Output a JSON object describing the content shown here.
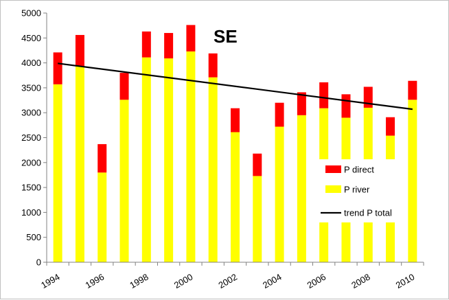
{
  "chart_data": {
    "type": "bar",
    "stacked": true,
    "label": "SE",
    "x": [
      1994,
      1995,
      1996,
      1997,
      1998,
      1999,
      2000,
      2001,
      2002,
      2003,
      2004,
      2005,
      2006,
      2007,
      2008,
      2009,
      2010
    ],
    "x_tick_labels": [
      "1994",
      "1996",
      "1998",
      "2000",
      "2002",
      "2004",
      "2006",
      "2008",
      "2010"
    ],
    "y_tick_labels": [
      "0",
      "500",
      "1000",
      "1500",
      "2000",
      "2500",
      "3000",
      "3500",
      "4000",
      "4500",
      "5000"
    ],
    "ylim": [
      0,
      5000
    ],
    "grid": false,
    "legend_position": "right",
    "series": [
      {
        "name": "P river",
        "color": "#ffff00",
        "values": [
          3570,
          3930,
          1800,
          3260,
          4110,
          4090,
          4230,
          3710,
          2610,
          1730,
          2720,
          2950,
          3090,
          2900,
          3100,
          2540,
          3260
        ]
      },
      {
        "name": "P direct",
        "color": "#ff0000",
        "values": [
          640,
          630,
          570,
          540,
          520,
          510,
          530,
          480,
          480,
          450,
          480,
          460,
          520,
          470,
          420,
          370,
          380
        ]
      }
    ],
    "trend": {
      "name": "trend P total",
      "color": "#000000",
      "start": [
        1994,
        3990
      ],
      "end": [
        2010,
        3070
      ]
    },
    "legend_order": [
      "P direct",
      "P river",
      "trend P total"
    ]
  }
}
